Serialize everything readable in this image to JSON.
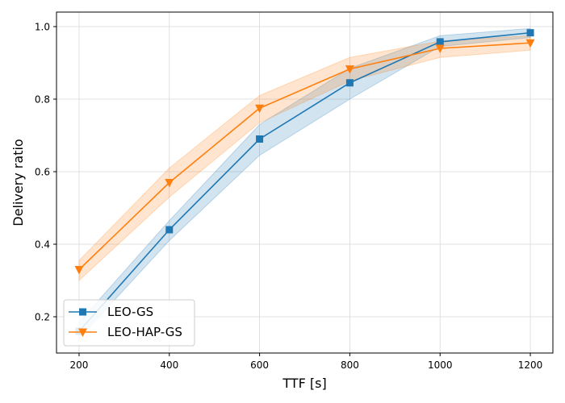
{
  "chart_data": {
    "type": "line",
    "title": "",
    "xlabel": "TTF [s]",
    "ylabel": "Delivery ratio",
    "x": [
      200,
      400,
      600,
      800,
      1000,
      1200
    ],
    "xlim": [
      150,
      1250
    ],
    "ylim": [
      0.1,
      1.04
    ],
    "xticks": [
      200,
      400,
      600,
      800,
      1000,
      1200
    ],
    "yticks": [
      0.2,
      0.4,
      0.6,
      0.8,
      1.0
    ],
    "xtick_labels": [
      "200",
      "400",
      "600",
      "800",
      "1000",
      "1200"
    ],
    "ytick_labels": [
      "0.2",
      "0.4",
      "0.6",
      "0.8",
      "1.0"
    ],
    "grid": true,
    "legend_position": "lower-left",
    "series": [
      {
        "name": "LEO-GS",
        "color": "#1f77b4",
        "marker": "square",
        "values": [
          0.16,
          0.44,
          0.69,
          0.845,
          0.958,
          0.983
        ],
        "band_low": [
          0.14,
          0.41,
          0.645,
          0.8,
          0.945,
          0.97
        ],
        "band_high": [
          0.185,
          0.465,
          0.73,
          0.885,
          0.975,
          0.995
        ]
      },
      {
        "name": "LEO-HAP-GS",
        "color": "#ff7f0e",
        "marker": "triangle-down",
        "values": [
          0.33,
          0.57,
          0.775,
          0.883,
          0.94,
          0.955
        ],
        "band_low": [
          0.3,
          0.53,
          0.735,
          0.85,
          0.915,
          0.935
        ],
        "band_high": [
          0.355,
          0.61,
          0.81,
          0.915,
          0.96,
          0.975
        ]
      }
    ]
  }
}
